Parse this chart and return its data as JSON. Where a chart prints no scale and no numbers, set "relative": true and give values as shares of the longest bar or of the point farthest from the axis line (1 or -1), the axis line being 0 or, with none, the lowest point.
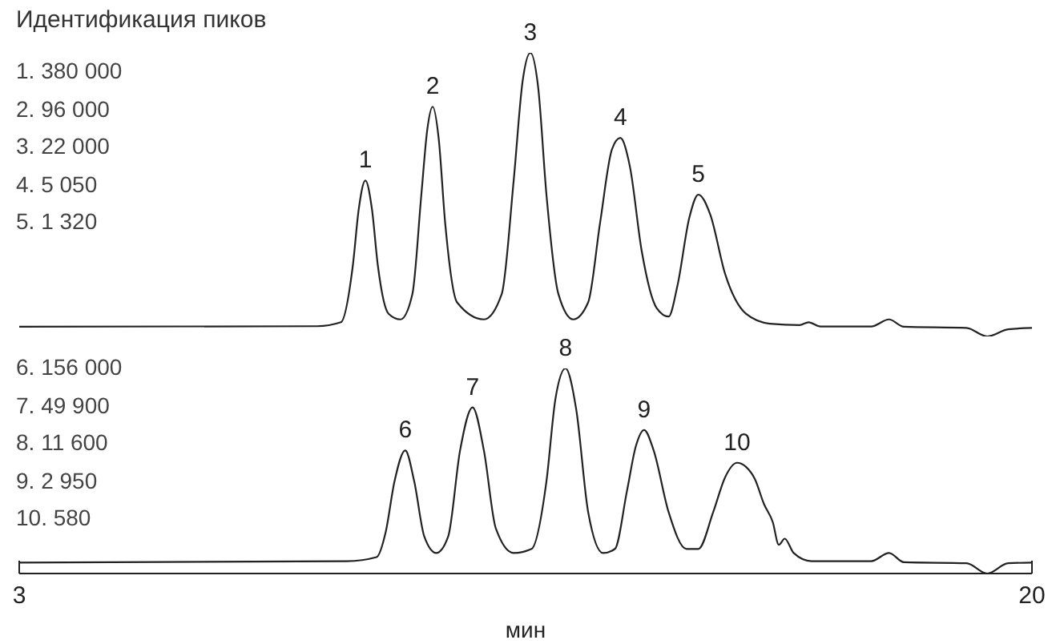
{
  "chart_data": [
    {
      "type": "line",
      "relative": true,
      "title": "Идентификация пиков",
      "xlim": [
        3,
        20
      ],
      "tick_labels": false,
      "grid": false,
      "legend": false,
      "annotations": [
        "1. 380 000",
        "2. 96 000",
        "3. 22 000",
        "4. 5 050",
        "5. 1 320",
        {
          "text": "1",
          "x": 8.81,
          "y": 0.55
        },
        {
          "text": "2",
          "x": 9.94,
          "y": 0.81
        },
        {
          "text": "3",
          "x": 11.58,
          "y": 1
        },
        {
          "text": "4",
          "x": 13.09,
          "y": 0.7
        },
        {
          "text": "5",
          "x": 14.4,
          "y": 0.5
        }
      ],
      "series": [
        {
          "color": "#222222",
          "x": [
            3,
            8.0,
            8.4,
            8.6,
            8.7,
            8.81,
            8.92,
            9.02,
            9.2,
            9.4,
            9.6,
            9.75,
            9.85,
            9.94,
            10.04,
            10.15,
            10.35,
            10.8,
            11.1,
            11.3,
            11.45,
            11.58,
            11.71,
            11.85,
            12.05,
            12.3,
            12.55,
            12.75,
            12.95,
            13.09,
            13.25,
            13.45,
            13.7,
            13.9,
            14.05,
            14.25,
            14.4,
            14.6,
            14.85,
            15.2,
            15.6,
            16.1,
            16.25,
            16.45,
            17.3,
            17.6,
            17.85,
            18.9,
            19.25,
            19.6,
            20
          ],
          "values": [
            0.034,
            0.036,
            0.05,
            0.25,
            0.45,
            0.55,
            0.45,
            0.25,
            0.08,
            0.06,
            0.15,
            0.5,
            0.73,
            0.81,
            0.7,
            0.4,
            0.12,
            0.06,
            0.15,
            0.55,
            0.9,
            1,
            0.88,
            0.5,
            0.15,
            0.06,
            0.12,
            0.4,
            0.66,
            0.7,
            0.6,
            0.3,
            0.1,
            0.07,
            0.18,
            0.42,
            0.5,
            0.43,
            0.22,
            0.08,
            0.045,
            0.04,
            0.05,
            0.035,
            0.035,
            0.06,
            0.034,
            0.03,
            0,
            0.025,
            0.03
          ]
        }
      ]
    },
    {
      "type": "line",
      "relative": true,
      "xlim": [
        3,
        20
      ],
      "xticks": [
        3,
        20
      ],
      "xlabel": "мин",
      "tick_labels": "x",
      "grid": false,
      "legend": false,
      "annotations": [
        "6. 156 000",
        "7. 49 900",
        "8. 11 600",
        "9. 2 950",
        "10. 580",
        {
          "text": "6",
          "x": 9.48,
          "y": 0.6
        },
        {
          "text": "7",
          "x": 10.61,
          "y": 0.81
        },
        {
          "text": "8",
          "x": 12.17,
          "y": 1
        },
        {
          "text": "9",
          "x": 13.49,
          "y": 0.7
        },
        {
          "text": "10",
          "x": 15.05,
          "y": 0.54
        }
      ],
      "series": [
        {
          "color": "#222222",
          "x": [
            3,
            8.5,
            9.0,
            9.15,
            9.3,
            9.48,
            9.63,
            9.8,
            10.0,
            10.2,
            10.4,
            10.61,
            10.8,
            11.0,
            11.3,
            11.6,
            11.85,
            12.0,
            12.17,
            12.35,
            12.55,
            12.8,
            13.0,
            13.2,
            13.35,
            13.49,
            13.65,
            13.9,
            14.2,
            14.4,
            14.65,
            14.85,
            15.05,
            15.2,
            15.35,
            15.5,
            15.65,
            15.75,
            15.85,
            16.0,
            16.3,
            17.3,
            17.6,
            17.85,
            18.9,
            19.25,
            19.6,
            20
          ],
          "values": [
            0.053,
            0.06,
            0.08,
            0.2,
            0.45,
            0.6,
            0.45,
            0.18,
            0.1,
            0.18,
            0.6,
            0.81,
            0.6,
            0.22,
            0.1,
            0.12,
            0.45,
            0.85,
            1,
            0.8,
            0.3,
            0.1,
            0.12,
            0.4,
            0.62,
            0.7,
            0.6,
            0.3,
            0.12,
            0.12,
            0.3,
            0.47,
            0.54,
            0.52,
            0.46,
            0.34,
            0.25,
            0.14,
            0.17,
            0.1,
            0.06,
            0.06,
            0.1,
            0.055,
            0.05,
            0,
            0.05,
            0.053
          ]
        }
      ]
    }
  ]
}
